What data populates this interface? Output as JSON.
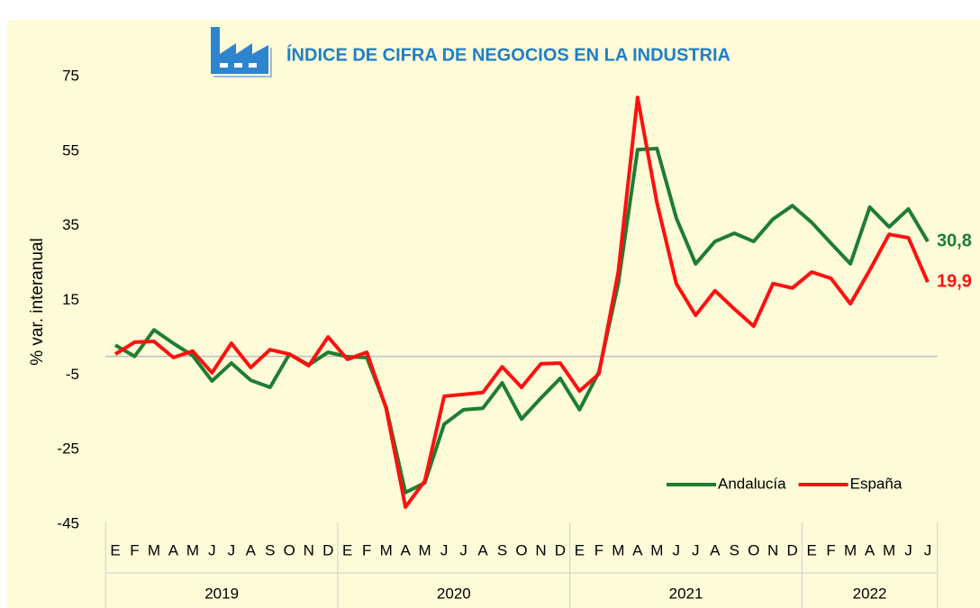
{
  "chart_data": {
    "type": "line",
    "title": "ÍNDICE DE CIFRA DE NEGOCIOS EN LA INDUSTRIA",
    "y_label": "% var. interanual",
    "categories": [
      {
        "month": "E",
        "year": "2019"
      },
      {
        "month": "F",
        "year": "2019"
      },
      {
        "month": "M",
        "year": "2019"
      },
      {
        "month": "A",
        "year": "2019"
      },
      {
        "month": "M",
        "year": "2019"
      },
      {
        "month": "J",
        "year": "2019"
      },
      {
        "month": "J",
        "year": "2019"
      },
      {
        "month": "A",
        "year": "2019"
      },
      {
        "month": "S",
        "year": "2019"
      },
      {
        "month": "O",
        "year": "2019"
      },
      {
        "month": "N",
        "year": "2019"
      },
      {
        "month": "D",
        "year": "2019"
      },
      {
        "month": "E",
        "year": "2020"
      },
      {
        "month": "F",
        "year": "2020"
      },
      {
        "month": "M",
        "year": "2020"
      },
      {
        "month": "A",
        "year": "2020"
      },
      {
        "month": "M",
        "year": "2020"
      },
      {
        "month": "J",
        "year": "2020"
      },
      {
        "month": "J",
        "year": "2020"
      },
      {
        "month": "A",
        "year": "2020"
      },
      {
        "month": "S",
        "year": "2020"
      },
      {
        "month": "O",
        "year": "2020"
      },
      {
        "month": "N",
        "year": "2020"
      },
      {
        "month": "D",
        "year": "2020"
      },
      {
        "month": "E",
        "year": "2021"
      },
      {
        "month": "F",
        "year": "2021"
      },
      {
        "month": "M",
        "year": "2021"
      },
      {
        "month": "A",
        "year": "2021"
      },
      {
        "month": "M",
        "year": "2021"
      },
      {
        "month": "J",
        "year": "2021"
      },
      {
        "month": "J",
        "year": "2021"
      },
      {
        "month": "A",
        "year": "2021"
      },
      {
        "month": "S",
        "year": "2021"
      },
      {
        "month": "O",
        "year": "2021"
      },
      {
        "month": "N",
        "year": "2021"
      },
      {
        "month": "D",
        "year": "2021"
      },
      {
        "month": "E",
        "year": "2022"
      },
      {
        "month": "F",
        "year": "2022"
      },
      {
        "month": "M",
        "year": "2022"
      },
      {
        "month": "A",
        "year": "2022"
      },
      {
        "month": "M",
        "year": "2022"
      },
      {
        "month": "J",
        "year": "2022"
      },
      {
        "month": "J",
        "year": "2022"
      }
    ],
    "series": [
      {
        "name": "Andalucía",
        "color": "#1e7d32",
        "values": [
          3.0,
          0,
          7.1,
          3.5,
          0.2,
          -6.6,
          -1.8,
          -6.4,
          -8.3,
          0.6,
          -2.3,
          1.1,
          -0.1,
          -0.3,
          -13.6,
          -36.5,
          -33.9,
          -18.2,
          -14.3,
          -13.9,
          -7.1,
          -16.8,
          -11.2,
          -5.9,
          -14.3,
          -4.2,
          19.5,
          55.4,
          55.7,
          37.1,
          24.8,
          30.8,
          33.0,
          30.8,
          36.8,
          40.4,
          35.9,
          30.3,
          24.8,
          40.0,
          34.7,
          39.5,
          30.8
        ],
        "value_labels": [
          null,
          null,
          null,
          null,
          null,
          null,
          null,
          null,
          null,
          null,
          null,
          null,
          null,
          null,
          null,
          null,
          null,
          null,
          null,
          null,
          null,
          null,
          null,
          null,
          null,
          null,
          null,
          null,
          null,
          null,
          null,
          null,
          null,
          null,
          null,
          null,
          null,
          null,
          null,
          null,
          null,
          null,
          "30,8"
        ]
      },
      {
        "name": "España",
        "color": "#ff1010",
        "values": [
          0.6,
          3.8,
          4.0,
          -0.3,
          1.4,
          -4.4,
          3.5,
          -3.0,
          1.8,
          0.6,
          -2.5,
          5.2,
          -0.8,
          1.1,
          -13.9,
          -40.4,
          -33.4,
          -10.7,
          -10.2,
          -9.7,
          -2.8,
          -8.3,
          -2.0,
          -1.8,
          -9.3,
          -4.7,
          22.6,
          69.4,
          41.2,
          19.5,
          11.0,
          17.6,
          12.7,
          8.1,
          19.5,
          18.3,
          22.6,
          20.9,
          14.1,
          23.1,
          32.7,
          31.8,
          19.9
        ],
        "value_labels": [
          null,
          null,
          null,
          null,
          null,
          null,
          null,
          null,
          null,
          null,
          null,
          null,
          null,
          null,
          null,
          null,
          null,
          null,
          null,
          null,
          null,
          null,
          null,
          null,
          null,
          null,
          null,
          null,
          null,
          null,
          null,
          null,
          null,
          null,
          null,
          null,
          null,
          null,
          null,
          null,
          null,
          null,
          "19,9"
        ]
      }
    ],
    "ylim": [
      -45,
      75
    ],
    "yticks": [
      -45,
      -25,
      -5,
      15,
      35,
      55,
      75
    ],
    "grid": false,
    "legend": "lower right"
  }
}
